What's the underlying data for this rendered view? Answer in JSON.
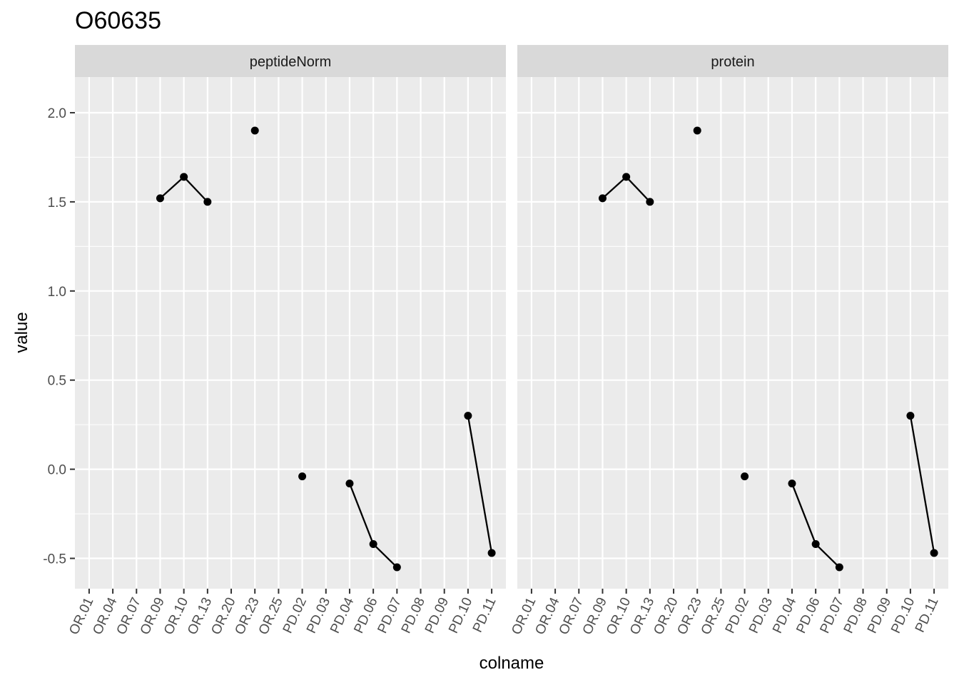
{
  "chart_data": {
    "type": "line",
    "title": "O60635",
    "xlabel": "colname",
    "ylabel": "value",
    "categories": [
      "OR.01",
      "OR.04",
      "OR.07",
      "OR.09",
      "OR.10",
      "OR.13",
      "OR.20",
      "OR.23",
      "OR.25",
      "PD.02",
      "PD.03",
      "PD.04",
      "PD.06",
      "PD.07",
      "PD.08",
      "PD.09",
      "PD.10",
      "PD.11"
    ],
    "ylim": [
      -0.67,
      2.2
    ],
    "yticks": [
      -0.5,
      0.0,
      0.5,
      1.0,
      1.5,
      2.0
    ],
    "ytick_labels": [
      "-0.5",
      "0.0",
      "0.5",
      "1.0",
      "1.5",
      "2.0"
    ],
    "grid": true,
    "panels": [
      {
        "name": "peptideNorm",
        "points": [
          {
            "x": "OR.09",
            "y": 1.52
          },
          {
            "x": "OR.10",
            "y": 1.64
          },
          {
            "x": "OR.13",
            "y": 1.5
          },
          {
            "x": "OR.23",
            "y": 1.9
          },
          {
            "x": "PD.02",
            "y": -0.04
          },
          {
            "x": "PD.04",
            "y": -0.08
          },
          {
            "x": "PD.06",
            "y": -0.42
          },
          {
            "x": "PD.07",
            "y": -0.55
          },
          {
            "x": "PD.10",
            "y": 0.3
          },
          {
            "x": "PD.11",
            "y": -0.47
          }
        ],
        "segments": [
          [
            "OR.09",
            "OR.10"
          ],
          [
            "OR.10",
            "OR.13"
          ],
          [
            "PD.04",
            "PD.06"
          ],
          [
            "PD.06",
            "PD.07"
          ],
          [
            "PD.10",
            "PD.11"
          ]
        ]
      },
      {
        "name": "protein",
        "points": [
          {
            "x": "OR.09",
            "y": 1.52
          },
          {
            "x": "OR.10",
            "y": 1.64
          },
          {
            "x": "OR.13",
            "y": 1.5
          },
          {
            "x": "OR.23",
            "y": 1.9
          },
          {
            "x": "PD.02",
            "y": -0.04
          },
          {
            "x": "PD.04",
            "y": -0.08
          },
          {
            "x": "PD.06",
            "y": -0.42
          },
          {
            "x": "PD.07",
            "y": -0.55
          },
          {
            "x": "PD.10",
            "y": 0.3
          },
          {
            "x": "PD.11",
            "y": -0.47
          }
        ],
        "segments": [
          [
            "OR.09",
            "OR.10"
          ],
          [
            "OR.10",
            "OR.13"
          ],
          [
            "PD.04",
            "PD.06"
          ],
          [
            "PD.06",
            "PD.07"
          ],
          [
            "PD.10",
            "PD.11"
          ]
        ]
      }
    ],
    "colors": {
      "panel_bg": "#ebebeb",
      "strip_bg": "#d9d9d9",
      "grid": "#ffffff",
      "mark": "#000000",
      "tick": "#333333"
    }
  }
}
